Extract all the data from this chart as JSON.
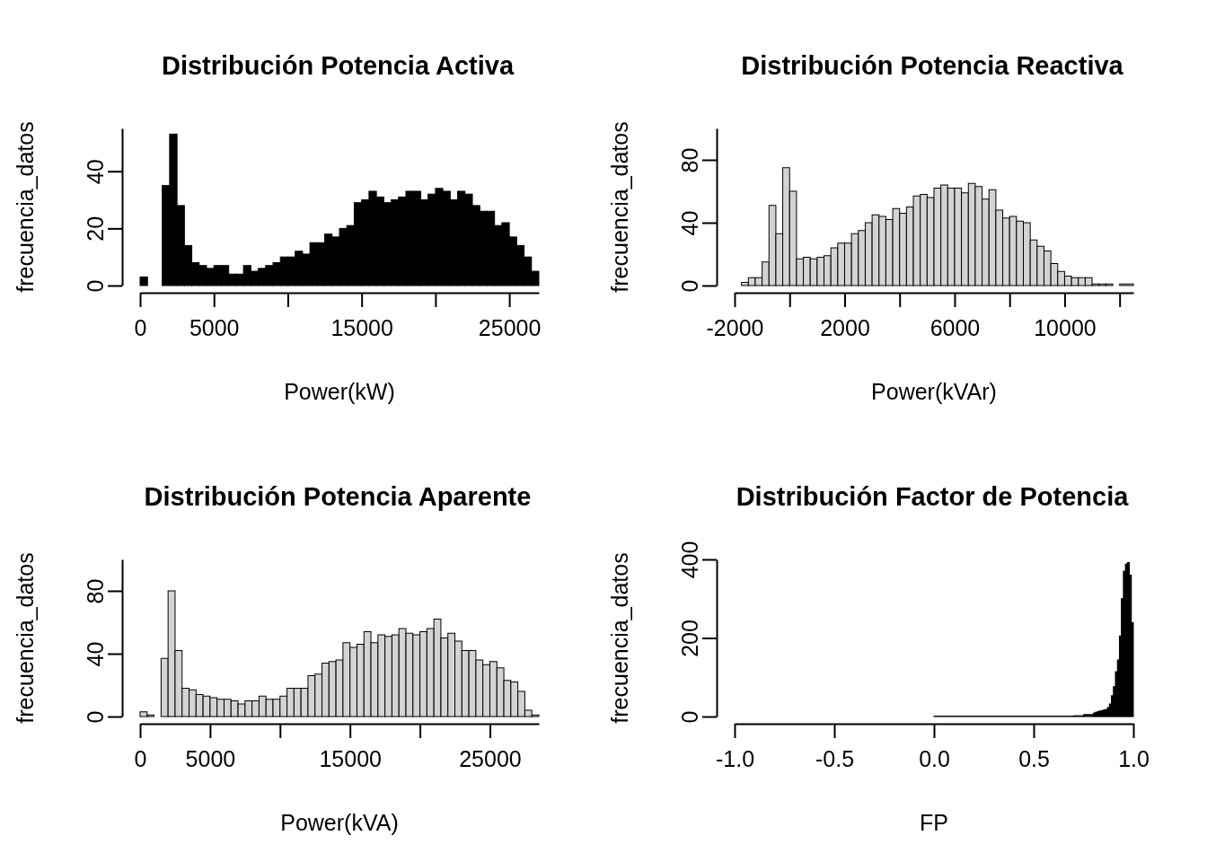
{
  "chart_data": [
    {
      "type": "histogram",
      "title": "Distribución Potencia Activa",
      "xlabel": "Power(kW)",
      "ylabel": "frecuencia_datos",
      "color": "#000000",
      "bins": [
        0,
        500,
        1000,
        1500,
        2000,
        2500,
        3000,
        3500,
        4000,
        4500,
        5000,
        5500,
        6000,
        6500,
        7000,
        7500,
        8000,
        8500,
        9000,
        9500,
        10000,
        10500,
        11000,
        11500,
        12000,
        12500,
        13000,
        13500,
        14000,
        14500,
        15000,
        15500,
        16000,
        16500,
        17000,
        17500,
        18000,
        18500,
        19000,
        19500,
        20000,
        20500,
        21000,
        21500,
        22000,
        22500,
        23000,
        23500,
        24000,
        24500,
        25000,
        25500,
        26000,
        26500,
        27000
      ],
      "values": [
        3,
        0,
        0,
        35,
        53,
        28,
        14,
        8,
        7,
        6,
        7,
        7,
        4,
        4,
        7,
        5,
        6,
        7,
        8,
        10,
        10,
        12,
        11,
        15,
        15,
        18,
        17,
        20,
        21,
        29,
        30,
        33,
        31,
        29,
        30,
        31,
        33,
        33,
        30,
        32,
        34,
        33,
        30,
        33,
        32,
        28,
        26,
        26,
        21,
        22,
        17,
        14,
        10,
        5
      ],
      "xlim": [
        0,
        27000
      ],
      "ylim": [
        0,
        55
      ],
      "xticks": [
        0,
        5000,
        {
          "value": 10000,
          "label": null
        },
        15000,
        {
          "value": 20000,
          "label": null
        },
        25000
      ],
      "yticks": [
        0,
        20,
        40
      ]
    },
    {
      "type": "histogram",
      "title": "Distribución Potencia Reactiva",
      "xlabel": "Power(kVAr)",
      "ylabel": "frecuencia_datos",
      "color": "#d3d3d3",
      "bins": [
        -1750,
        -1500,
        -1250,
        -1000,
        -750,
        -500,
        -250,
        0,
        250,
        500,
        750,
        1000,
        1250,
        1500,
        1750,
        2000,
        2250,
        2500,
        2750,
        3000,
        3250,
        3500,
        3750,
        4000,
        4250,
        4500,
        4750,
        5000,
        5250,
        5500,
        5750,
        6000,
        6250,
        6500,
        6750,
        7000,
        7250,
        7500,
        7750,
        8000,
        8250,
        8500,
        8750,
        9000,
        9250,
        9500,
        9750,
        10000,
        10250,
        10500,
        10750,
        11000,
        11250,
        11500,
        11750,
        12000,
        12500
      ],
      "values": [
        2,
        5,
        5,
        15,
        51,
        33,
        75,
        60,
        17,
        18,
        17,
        18,
        19,
        24,
        27,
        27,
        33,
        35,
        40,
        45,
        44,
        42,
        49,
        46,
        50,
        57,
        58,
        56,
        62,
        64,
        62,
        62,
        59,
        65,
        63,
        55,
        61,
        48,
        43,
        44,
        41,
        40,
        29,
        25,
        22,
        14,
        9,
        6,
        5,
        5,
        5,
        1,
        1,
        1,
        0,
        1
      ],
      "xlim": [
        -2000,
        12500
      ],
      "ylim": [
        0,
        100
      ],
      "xticks": [
        -2000,
        {
          "value": 0,
          "label": null
        },
        2000,
        {
          "value": 4000,
          "label": null
        },
        6000,
        {
          "value": 8000,
          "label": null
        },
        10000,
        {
          "value": 12000,
          "label": null
        }
      ],
      "yticks": [
        0,
        40,
        80
      ]
    },
    {
      "type": "histogram",
      "title": "Distribución Potencia Aparente",
      "xlabel": "Power(kVA)",
      "ylabel": "frecuencia_datos",
      "color": "#d3d3d3",
      "bins": [
        0,
        500,
        1000,
        1500,
        2000,
        2500,
        3000,
        3500,
        4000,
        4500,
        5000,
        5500,
        6000,
        6500,
        7000,
        7500,
        8000,
        8500,
        9000,
        9500,
        10000,
        10500,
        11000,
        11500,
        12000,
        12500,
        13000,
        13500,
        14000,
        14500,
        15000,
        15500,
        16000,
        16500,
        17000,
        17500,
        18000,
        18500,
        19000,
        19500,
        20000,
        20500,
        21000,
        21500,
        22000,
        22500,
        23000,
        23500,
        24000,
        24500,
        25000,
        25500,
        26000,
        26500,
        27000,
        27500,
        28000,
        28500
      ],
      "values": [
        3,
        1,
        0,
        37,
        80,
        42,
        18,
        17,
        14,
        13,
        12,
        11,
        11,
        10,
        8,
        10,
        10,
        13,
        11,
        11,
        13,
        18,
        18,
        18,
        26,
        27,
        34,
        35,
        36,
        47,
        44,
        46,
        54,
        47,
        52,
        51,
        52,
        56,
        53,
        52,
        54,
        56,
        62,
        50,
        53,
        48,
        42,
        42,
        36,
        33,
        35,
        31,
        23,
        22,
        16,
        4,
        1
      ],
      "xlim": [
        0,
        28500
      ],
      "ylim": [
        0,
        100
      ],
      "xticks": [
        0,
        5000,
        {
          "value": 10000,
          "label": null
        },
        15000,
        {
          "value": 20000,
          "label": null
        },
        25000
      ],
      "yticks": [
        0,
        40,
        80
      ]
    },
    {
      "type": "histogram",
      "title": "Distribución Factor de Potencia",
      "xlabel": "FP",
      "ylabel": "frecuencia_datos",
      "color": "#000000",
      "bins": [
        0,
        0.7,
        0.75,
        0.8,
        0.81,
        0.82,
        0.83,
        0.84,
        0.85,
        0.86,
        0.87,
        0.88,
        0.89,
        0.9,
        0.91,
        0.92,
        0.93,
        0.94,
        0.95,
        0.96,
        0.97,
        0.98,
        0.99,
        1.0
      ],
      "values": [
        1,
        2,
        5,
        9,
        11,
        13,
        14,
        15,
        17,
        18,
        23,
        32,
        53,
        76,
        114,
        144,
        205,
        300,
        370,
        388,
        392,
        360,
        239
      ],
      "xlim": [
        -1,
        1
      ],
      "ylim": [
        0,
        400
      ],
      "xticks": [
        {
          "value": -1,
          "label": "-1.0"
        },
        {
          "value": -0.5,
          "label": "-0.5"
        },
        {
          "value": 0,
          "label": "0.0"
        },
        {
          "value": 0.5,
          "label": "0.5"
        },
        {
          "value": 1,
          "label": "1.0"
        }
      ],
      "yticks": [
        0,
        200,
        400
      ]
    }
  ]
}
